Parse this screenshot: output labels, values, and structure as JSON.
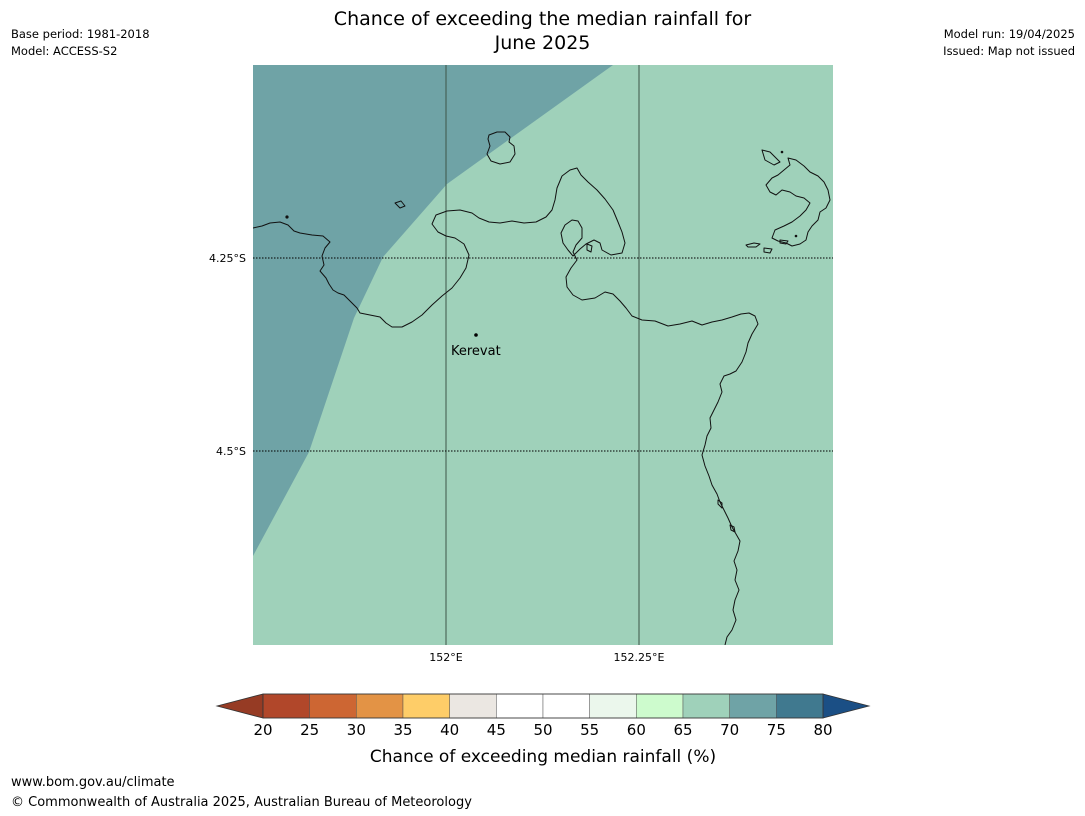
{
  "title_line1": "Chance of exceeding the median rainfall for",
  "title_line2": "June 2025",
  "meta_left": {
    "base_period": "Base period: 1981-2018",
    "model": "Model: ACCESS-S2"
  },
  "meta_right": {
    "model_run": "Model run: 19/04/2025",
    "issued": "Issued: Map not issued"
  },
  "map": {
    "lat_labels": [
      "4.25°S",
      "4.5°S"
    ],
    "lon_labels": [
      "152°E",
      "152.25°E"
    ],
    "place_label": "Kerevat",
    "region_colors": {
      "upper_band": "#6fa3a6",
      "main": "#9fd1ba"
    }
  },
  "colorbar": {
    "ticks": [
      "20",
      "25",
      "30",
      "35",
      "40",
      "45",
      "50",
      "55",
      "60",
      "65",
      "70",
      "75",
      "80"
    ],
    "colors": [
      "#b1472a",
      "#cd6633",
      "#e39345",
      "#fecd68",
      "#ebe7e2",
      "#ffffff",
      "#ffffff",
      "#ebf7ec",
      "#cdfbcd",
      "#9fd1ba",
      "#6fa3a6",
      "#40798f"
    ],
    "under_color": "#963b24",
    "over_color": "#1b4f85",
    "label": "Chance of exceeding median rainfall (%)"
  },
  "footer": {
    "url": "www.bom.gov.au/climate",
    "copyright": "© Commonwealth of Australia 2025, Australian Bureau of Meteorology"
  }
}
